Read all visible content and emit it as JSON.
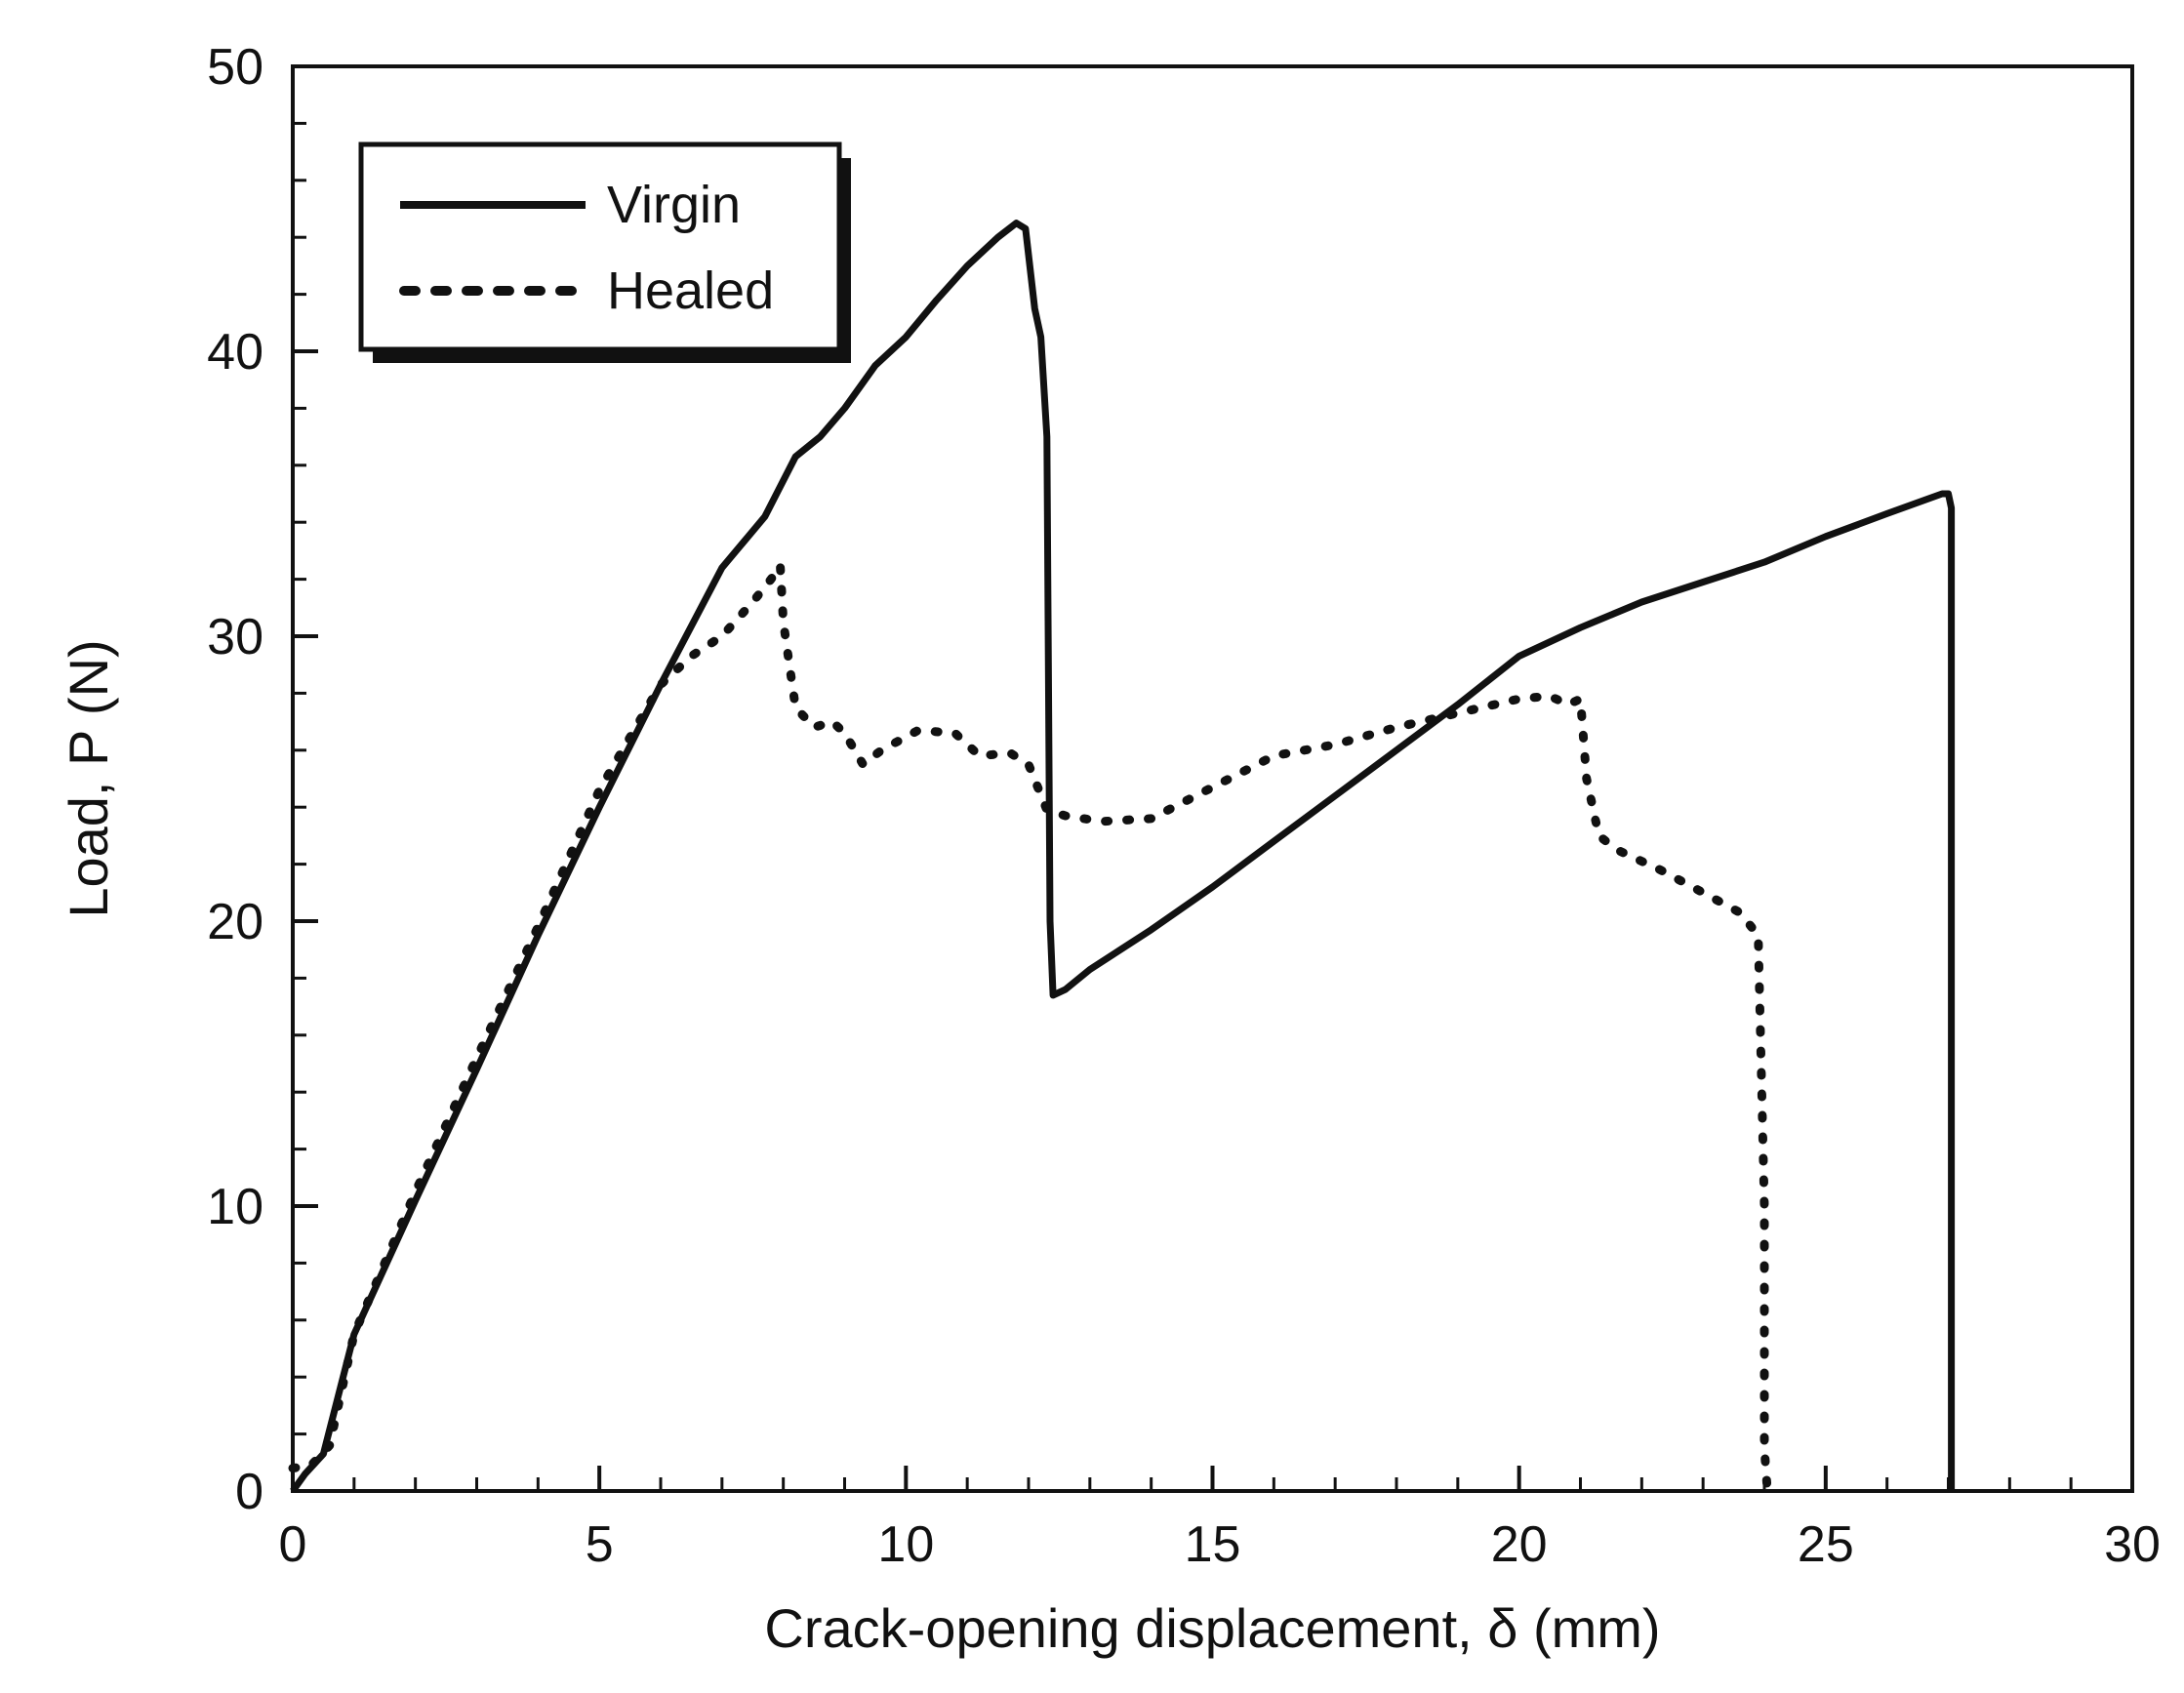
{
  "chart_data": {
    "type": "line",
    "title": "",
    "xlabel": "Crack-opening displacement,  δ (mm)",
    "ylabel": "Load, P (N)",
    "xlim": [
      0,
      30
    ],
    "ylim": [
      0,
      50
    ],
    "xticks": [
      0,
      5,
      10,
      15,
      20,
      25,
      30
    ],
    "yticks": [
      0,
      10,
      20,
      30,
      40,
      50
    ],
    "x_minor_step": 1,
    "y_minor_step": 2,
    "grid": false,
    "legend_position": "top-left",
    "series": [
      {
        "name": "Virgin",
        "style": "solid",
        "x": [
          0,
          0.2,
          0.5,
          1,
          2,
          3,
          4,
          5,
          6,
          7,
          7.7,
          8.2,
          8.6,
          9,
          9.5,
          10,
          10.5,
          11,
          11.5,
          11.8,
          11.95,
          12.1,
          12.2,
          12.3,
          12.35,
          12.4,
          12.6,
          13,
          14,
          15,
          16,
          17,
          18,
          19,
          20,
          21,
          22,
          23,
          24,
          25,
          26,
          26.9,
          27,
          27.05,
          27.05
        ],
        "values": [
          0,
          0.6,
          1.3,
          5.5,
          10.2,
          14.8,
          19.5,
          24.0,
          28.3,
          32.4,
          34.2,
          36.3,
          37.0,
          38.0,
          39.5,
          40.5,
          41.8,
          43.0,
          44.0,
          44.5,
          44.3,
          41.5,
          40.5,
          37.0,
          20.0,
          17.4,
          17.6,
          18.3,
          19.7,
          21.2,
          22.8,
          24.4,
          26.0,
          27.6,
          29.3,
          30.3,
          31.2,
          31.9,
          32.6,
          33.5,
          34.3,
          35.0,
          35.0,
          34.5,
          0
        ]
      },
      {
        "name": "Healed",
        "style": "dotted",
        "x": [
          0,
          0.3,
          0.6,
          1,
          2,
          3,
          4,
          5,
          6,
          6.5,
          7,
          7.5,
          7.8,
          7.95,
          8.0,
          8.1,
          8.2,
          8.5,
          8.8,
          9.0,
          9.3,
          9.6,
          10.2,
          10.8,
          11.2,
          11.7,
          12.0,
          12.3,
          12.6,
          13.2,
          14,
          15,
          16,
          17,
          18,
          19,
          20,
          20.5,
          20.8,
          21.0,
          21.1,
          21.2,
          21.3,
          21.6,
          22.3,
          23.0,
          23.6,
          23.9,
          24.0,
          24.0,
          24.05
        ],
        "values": [
          0.8,
          0.9,
          1.6,
          5.5,
          10.5,
          15.2,
          19.8,
          24.6,
          28.3,
          29.3,
          30.0,
          31.2,
          32.0,
          32.5,
          30.5,
          29.0,
          27.5,
          26.8,
          27.0,
          26.6,
          25.5,
          26.0,
          26.7,
          26.6,
          25.8,
          25.9,
          25.5,
          23.9,
          23.7,
          23.5,
          23.6,
          24.7,
          25.8,
          26.2,
          26.8,
          27.3,
          27.8,
          27.9,
          27.6,
          27.8,
          25.0,
          24.0,
          23.0,
          22.5,
          21.8,
          21.0,
          20.3,
          19.5,
          10.0,
          1.5,
          0
        ]
      }
    ]
  }
}
